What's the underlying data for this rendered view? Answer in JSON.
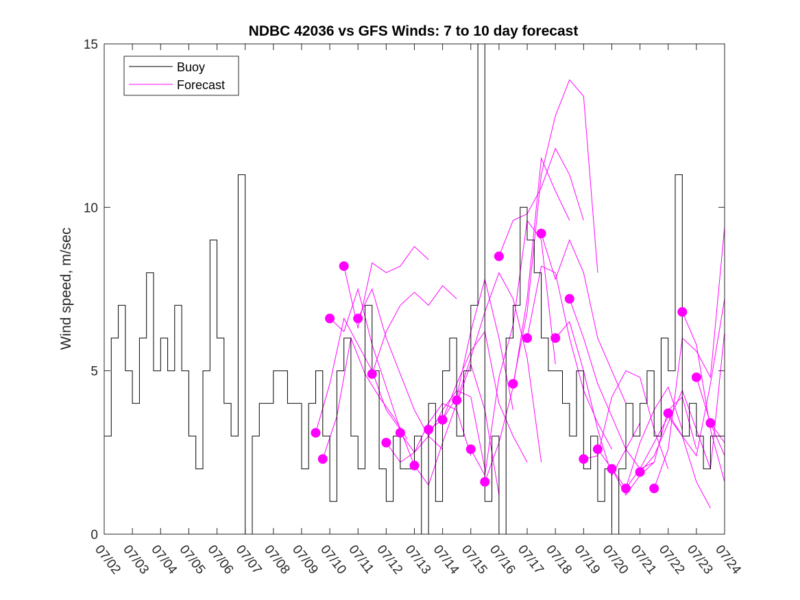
{
  "chart_data": {
    "type": "line",
    "title": "NDBC 42036 vs GFS Winds: 7 to 10 day forecast",
    "xlabel": "",
    "ylabel": "Wind speed, m/sec",
    "ylim": [
      0,
      15
    ],
    "yticks": [
      0,
      5,
      10,
      15
    ],
    "xlim": [
      "07/02",
      "07/24"
    ],
    "xticks": [
      "07/02",
      "07/03",
      "07/04",
      "07/05",
      "07/06",
      "07/07",
      "07/08",
      "07/09",
      "07/10",
      "07/11",
      "07/12",
      "07/13",
      "07/14",
      "07/15",
      "07/16",
      "07/17",
      "07/18",
      "07/19",
      "07/20",
      "07/21",
      "07/22",
      "07/23",
      "07/24"
    ],
    "grid": false,
    "legend": {
      "placement": "top-left",
      "entries": [
        "Buoy",
        "Forecast"
      ]
    },
    "colors": {
      "buoy": "#000000",
      "forecast": "#ff00ff"
    },
    "series": [
      {
        "name": "Buoy",
        "style": "step",
        "x": [
          "07/02 00:00",
          "07/02 06:00",
          "07/02 12:00",
          "07/02 18:00",
          "07/03 00:00",
          "07/03 06:00",
          "07/03 12:00",
          "07/03 18:00",
          "07/04 00:00",
          "07/04 06:00",
          "07/04 12:00",
          "07/04 18:00",
          "07/05 00:00",
          "07/05 06:00",
          "07/05 12:00",
          "07/05 18:00",
          "07/06 00:00",
          "07/06 06:00",
          "07/06 12:00",
          "07/06 18:00",
          "07/07 00:00",
          "07/07 06:00",
          "07/07 12:00",
          "07/07 18:00",
          "07/08 00:00",
          "07/08 06:00",
          "07/08 12:00",
          "07/08 18:00",
          "07/09 00:00",
          "07/09 06:00",
          "07/09 12:00",
          "07/09 18:00",
          "07/10 00:00",
          "07/10 06:00",
          "07/10 12:00",
          "07/10 18:00",
          "07/11 00:00",
          "07/11 06:00",
          "07/11 12:00",
          "07/11 18:00",
          "07/12 00:00",
          "07/12 06:00",
          "07/12 12:00",
          "07/12 18:00",
          "07/13 00:00",
          "07/13 06:00",
          "07/13 12:00",
          "07/13 18:00",
          "07/14 00:00",
          "07/14 06:00",
          "07/14 12:00",
          "07/14 18:00",
          "07/15 00:00",
          "07/15 06:00",
          "07/15 12:00",
          "07/15 18:00",
          "07/16 00:00",
          "07/16 06:00",
          "07/16 12:00",
          "07/16 18:00",
          "07/17 00:00",
          "07/17 06:00",
          "07/17 12:00",
          "07/17 18:00",
          "07/18 00:00",
          "07/18 06:00",
          "07/18 12:00",
          "07/18 18:00",
          "07/19 00:00",
          "07/19 06:00",
          "07/19 12:00",
          "07/19 18:00",
          "07/20 00:00",
          "07/20 06:00",
          "07/20 12:00",
          "07/20 18:00",
          "07/21 00:00",
          "07/21 06:00",
          "07/21 12:00",
          "07/21 18:00",
          "07/22 00:00",
          "07/22 06:00",
          "07/22 12:00",
          "07/22 18:00",
          "07/23 00:00",
          "07/23 06:00",
          "07/23 12:00",
          "07/23 18:00"
        ],
        "values": [
          3,
          6,
          7,
          5,
          4,
          6,
          8,
          5,
          6,
          5,
          7,
          5,
          3,
          2,
          5,
          9,
          6,
          4,
          3,
          11,
          0,
          3,
          4,
          4,
          5,
          5,
          4,
          4,
          2,
          4,
          5,
          3,
          1,
          5,
          6,
          3,
          2,
          7,
          5,
          2,
          1,
          3,
          2,
          2,
          3,
          0,
          4,
          1,
          5,
          6,
          3,
          5,
          7,
          15,
          1,
          3,
          0,
          6,
          7,
          10,
          9,
          8,
          6,
          5,
          5,
          4,
          3,
          5,
          2,
          3,
          1,
          2,
          0,
          2,
          4,
          3,
          4,
          5,
          3,
          6,
          5,
          11,
          3,
          4,
          3,
          2,
          3,
          3
        ]
      },
      {
        "name": "Forecast",
        "style": "ensemble",
        "runs": [
          {
            "x": [
              "07/09 12:00",
              "07/10 00:00",
              "07/10 12:00",
              "07/11 00:00",
              "07/11 12:00",
              "07/12 00:00",
              "07/12 12:00"
            ],
            "values": [
              3.1,
              4.6,
              6.6,
              5.8,
              5.0,
              3.8,
              3.2
            ]
          },
          {
            "x": [
              "07/09 18:00",
              "07/10 06:00",
              "07/10 18:00",
              "07/11 06:00",
              "07/11 18:00",
              "07/12 06:00",
              "07/12 18:00"
            ],
            "values": [
              2.3,
              3.6,
              6.0,
              4.9,
              4.2,
              3.6,
              2.9
            ]
          },
          {
            "x": [
              "07/10 00:00",
              "07/10 12:00",
              "07/11 00:00",
              "07/11 12:00",
              "07/12 00:00",
              "07/12 12:00",
              "07/13 00:00"
            ],
            "values": [
              6.6,
              6.2,
              7.5,
              5.8,
              4.5,
              3.2,
              2.1
            ]
          },
          {
            "x": [
              "07/10 12:00",
              "07/11 00:00",
              "07/11 12:00",
              "07/12 00:00",
              "07/12 12:00",
              "07/13 00:00",
              "07/13 12:00"
            ],
            "values": [
              8.2,
              6.3,
              8.3,
              8.0,
              8.2,
              8.8,
              8.4
            ]
          },
          {
            "x": [
              "07/11 00:00",
              "07/11 12:00",
              "07/12 00:00",
              "07/12 12:00",
              "07/13 00:00",
              "07/13 12:00",
              "07/14 00:00"
            ],
            "values": [
              6.6,
              7.5,
              6.0,
              4.9,
              3.8,
              3.0,
              2.6
            ]
          },
          {
            "x": [
              "07/11 12:00",
              "07/12 00:00",
              "07/12 12:00",
              "07/13 00:00",
              "07/13 12:00",
              "07/14 00:00",
              "07/14 12:00"
            ],
            "values": [
              4.9,
              6.2,
              7.0,
              7.4,
              7.0,
              7.6,
              7.2
            ]
          },
          {
            "x": [
              "07/12 00:00",
              "07/12 12:00",
              "07/13 00:00",
              "07/13 12:00",
              "07/14 00:00",
              "07/14 12:00",
              "07/15 00:00"
            ],
            "values": [
              2.8,
              2.2,
              2.5,
              3.4,
              4.0,
              3.8,
              2.4
            ]
          },
          {
            "x": [
              "07/12 12:00",
              "07/13 00:00",
              "07/13 12:00",
              "07/14 00:00",
              "07/14 12:00",
              "07/15 00:00",
              "07/15 12:00"
            ],
            "values": [
              3.1,
              2.5,
              3.0,
              3.8,
              4.4,
              4.2,
              2.0
            ]
          },
          {
            "x": [
              "07/13 00:00",
              "07/13 12:00",
              "07/14 00:00",
              "07/14 12:00",
              "07/15 00:00",
              "07/15 12:00",
              "07/16 00:00"
            ],
            "values": [
              2.1,
              1.5,
              2.8,
              4.0,
              5.2,
              3.8,
              1.2
            ]
          },
          {
            "x": [
              "07/13 12:00",
              "07/14 00:00",
              "07/14 12:00",
              "07/15 00:00",
              "07/15 12:00",
              "07/16 00:00",
              "07/16 12:00"
            ],
            "values": [
              3.2,
              3.5,
              4.2,
              6.2,
              7.8,
              6.0,
              3.8
            ]
          },
          {
            "x": [
              "07/14 00:00",
              "07/14 12:00",
              "07/15 00:00",
              "07/15 12:00",
              "07/16 00:00",
              "07/16 12:00",
              "07/17 00:00"
            ],
            "values": [
              3.5,
              4.6,
              5.6,
              6.2,
              4.0,
              3.0,
              2.2
            ]
          },
          {
            "x": [
              "07/14 12:00",
              "07/15 00:00",
              "07/15 12:00",
              "07/16 00:00",
              "07/16 12:00",
              "07/17 00:00",
              "07/17 12:00"
            ],
            "values": [
              4.1,
              5.4,
              6.8,
              8.0,
              7.2,
              5.4,
              2.2
            ]
          },
          {
            "x": [
              "07/15 00:00",
              "07/15 12:00",
              "07/16 00:00",
              "07/16 12:00",
              "07/17 00:00",
              "07/17 12:00",
              "07/18 00:00"
            ],
            "values": [
              2.6,
              1.8,
              4.8,
              6.4,
              9.6,
              9.0,
              5.2
            ]
          },
          {
            "x": [
              "07/15 12:00",
              "07/16 00:00",
              "07/16 12:00",
              "07/17 00:00",
              "07/17 12:00",
              "07/18 00:00",
              "07/18 12:00"
            ],
            "values": [
              1.6,
              2.8,
              4.5,
              7.2,
              11.5,
              10.5,
              9.6
            ]
          },
          {
            "x": [
              "07/16 00:00",
              "07/16 12:00",
              "07/17 00:00",
              "07/17 12:00",
              "07/18 00:00",
              "07/18 12:00",
              "07/19 00:00"
            ],
            "values": [
              8.5,
              9.6,
              9.8,
              10.6,
              11.8,
              11.0,
              9.6
            ]
          },
          {
            "x": [
              "07/16 12:00",
              "07/17 00:00",
              "07/17 12:00",
              "07/18 00:00",
              "07/18 12:00",
              "07/19 00:00",
              "07/19 12:00"
            ],
            "values": [
              4.6,
              6.8,
              11.0,
              12.8,
              13.9,
              13.4,
              8.0
            ]
          },
          {
            "x": [
              "07/17 00:00",
              "07/17 12:00",
              "07/18 00:00",
              "07/18 12:00",
              "07/19 00:00",
              "07/19 12:00",
              "07/20 00:00"
            ],
            "values": [
              6.0,
              8.2,
              8.0,
              6.0,
              4.4,
              3.4,
              2.6
            ]
          },
          {
            "x": [
              "07/17 12:00",
              "07/18 00:00",
              "07/18 12:00",
              "07/19 00:00",
              "07/19 12:00",
              "07/20 00:00",
              "07/20 12:00"
            ],
            "values": [
              9.2,
              7.8,
              9.0,
              8.0,
              6.0,
              5.0,
              4.0
            ]
          },
          {
            "x": [
              "07/18 00:00",
              "07/18 12:00",
              "07/19 00:00",
              "07/19 12:00",
              "07/20 00:00",
              "07/20 12:00",
              "07/21 00:00"
            ],
            "values": [
              6.0,
              6.5,
              5.0,
              3.2,
              1.8,
              2.6,
              3.4
            ]
          },
          {
            "x": [
              "07/18 12:00",
              "07/19 00:00",
              "07/19 12:00",
              "07/20 00:00",
              "07/20 12:00",
              "07/21 00:00",
              "07/21 12:00"
            ],
            "values": [
              7.2,
              6.0,
              4.6,
              3.6,
              2.6,
              2.0,
              2.2
            ]
          },
          {
            "x": [
              "07/19 00:00",
              "07/19 12:00",
              "07/20 00:00",
              "07/20 12:00",
              "07/21 00:00",
              "07/21 12:00",
              "07/22 00:00"
            ],
            "values": [
              2.3,
              2.4,
              4.2,
              5.0,
              4.8,
              3.2,
              2.0
            ]
          },
          {
            "x": [
              "07/19 12:00",
              "07/20 00:00",
              "07/20 12:00",
              "07/21 00:00",
              "07/21 12:00",
              "07/22 00:00",
              "07/22 12:00"
            ],
            "values": [
              2.6,
              2.0,
              1.4,
              2.8,
              3.8,
              4.5,
              3.2
            ]
          },
          {
            "x": [
              "07/20 00:00",
              "07/20 12:00",
              "07/21 00:00",
              "07/21 12:00",
              "07/22 00:00",
              "07/22 12:00",
              "07/23 00:00"
            ],
            "values": [
              2.0,
              1.2,
              1.8,
              2.2,
              3.8,
              4.2,
              2.6
            ]
          },
          {
            "x": [
              "07/20 12:00",
              "07/21 00:00",
              "07/21 12:00",
              "07/22 00:00",
              "07/22 12:00",
              "07/23 00:00",
              "07/23 12:00"
            ],
            "values": [
              1.4,
              2.0,
              2.8,
              3.6,
              3.0,
              1.6,
              0.8
            ]
          },
          {
            "x": [
              "07/21 00:00",
              "07/21 12:00",
              "07/22 00:00",
              "07/22 12:00",
              "07/23 00:00",
              "07/23 12:00",
              "07/24 00:00"
            ],
            "values": [
              1.9,
              2.4,
              3.4,
              4.4,
              3.2,
              2.0,
              6.2
            ]
          },
          {
            "x": [
              "07/21 12:00",
              "07/22 00:00",
              "07/22 12:00",
              "07/23 00:00",
              "07/23 12:00",
              "07/24 00:00"
            ],
            "values": [
              1.4,
              2.6,
              6.0,
              5.6,
              4.8,
              9.4
            ]
          },
          {
            "x": [
              "07/22 00:00",
              "07/22 12:00",
              "07/23 00:00",
              "07/23 12:00",
              "07/24 00:00"
            ],
            "values": [
              3.7,
              3.0,
              2.4,
              4.6,
              7.2
            ]
          },
          {
            "x": [
              "07/22 12:00",
              "07/23 00:00",
              "07/23 12:00",
              "07/24 00:00"
            ],
            "values": [
              6.8,
              5.8,
              3.2,
              1.6
            ]
          },
          {
            "x": [
              "07/23 00:00",
              "07/23 12:00",
              "07/24 00:00"
            ],
            "values": [
              4.8,
              3.4,
              2.8
            ]
          },
          {
            "x": [
              "07/23 12:00",
              "07/24 00:00"
            ],
            "values": [
              3.4,
              2.4
            ]
          }
        ],
        "markers": {
          "x": [
            "07/09 12:00",
            "07/09 18:00",
            "07/10 00:00",
            "07/10 12:00",
            "07/11 00:00",
            "07/11 12:00",
            "07/12 00:00",
            "07/12 12:00",
            "07/13 00:00",
            "07/13 12:00",
            "07/14 00:00",
            "07/14 12:00",
            "07/15 00:00",
            "07/15 12:00",
            "07/16 00:00",
            "07/16 12:00",
            "07/17 00:00",
            "07/17 12:00",
            "07/18 00:00",
            "07/18 12:00",
            "07/19 00:00",
            "07/19 12:00",
            "07/20 00:00",
            "07/20 12:00",
            "07/21 00:00",
            "07/21 12:00",
            "07/22 00:00",
            "07/22 12:00",
            "07/23 00:00",
            "07/23 12:00"
          ],
          "values": [
            3.1,
            2.3,
            6.6,
            8.2,
            6.6,
            4.9,
            2.8,
            3.1,
            2.1,
            3.2,
            3.5,
            4.1,
            2.6,
            1.6,
            8.5,
            4.6,
            6.0,
            9.2,
            6.0,
            7.2,
            2.3,
            2.6,
            2.0,
            1.4,
            1.9,
            1.4,
            3.7,
            6.8,
            4.8,
            3.4
          ]
        }
      }
    ]
  }
}
